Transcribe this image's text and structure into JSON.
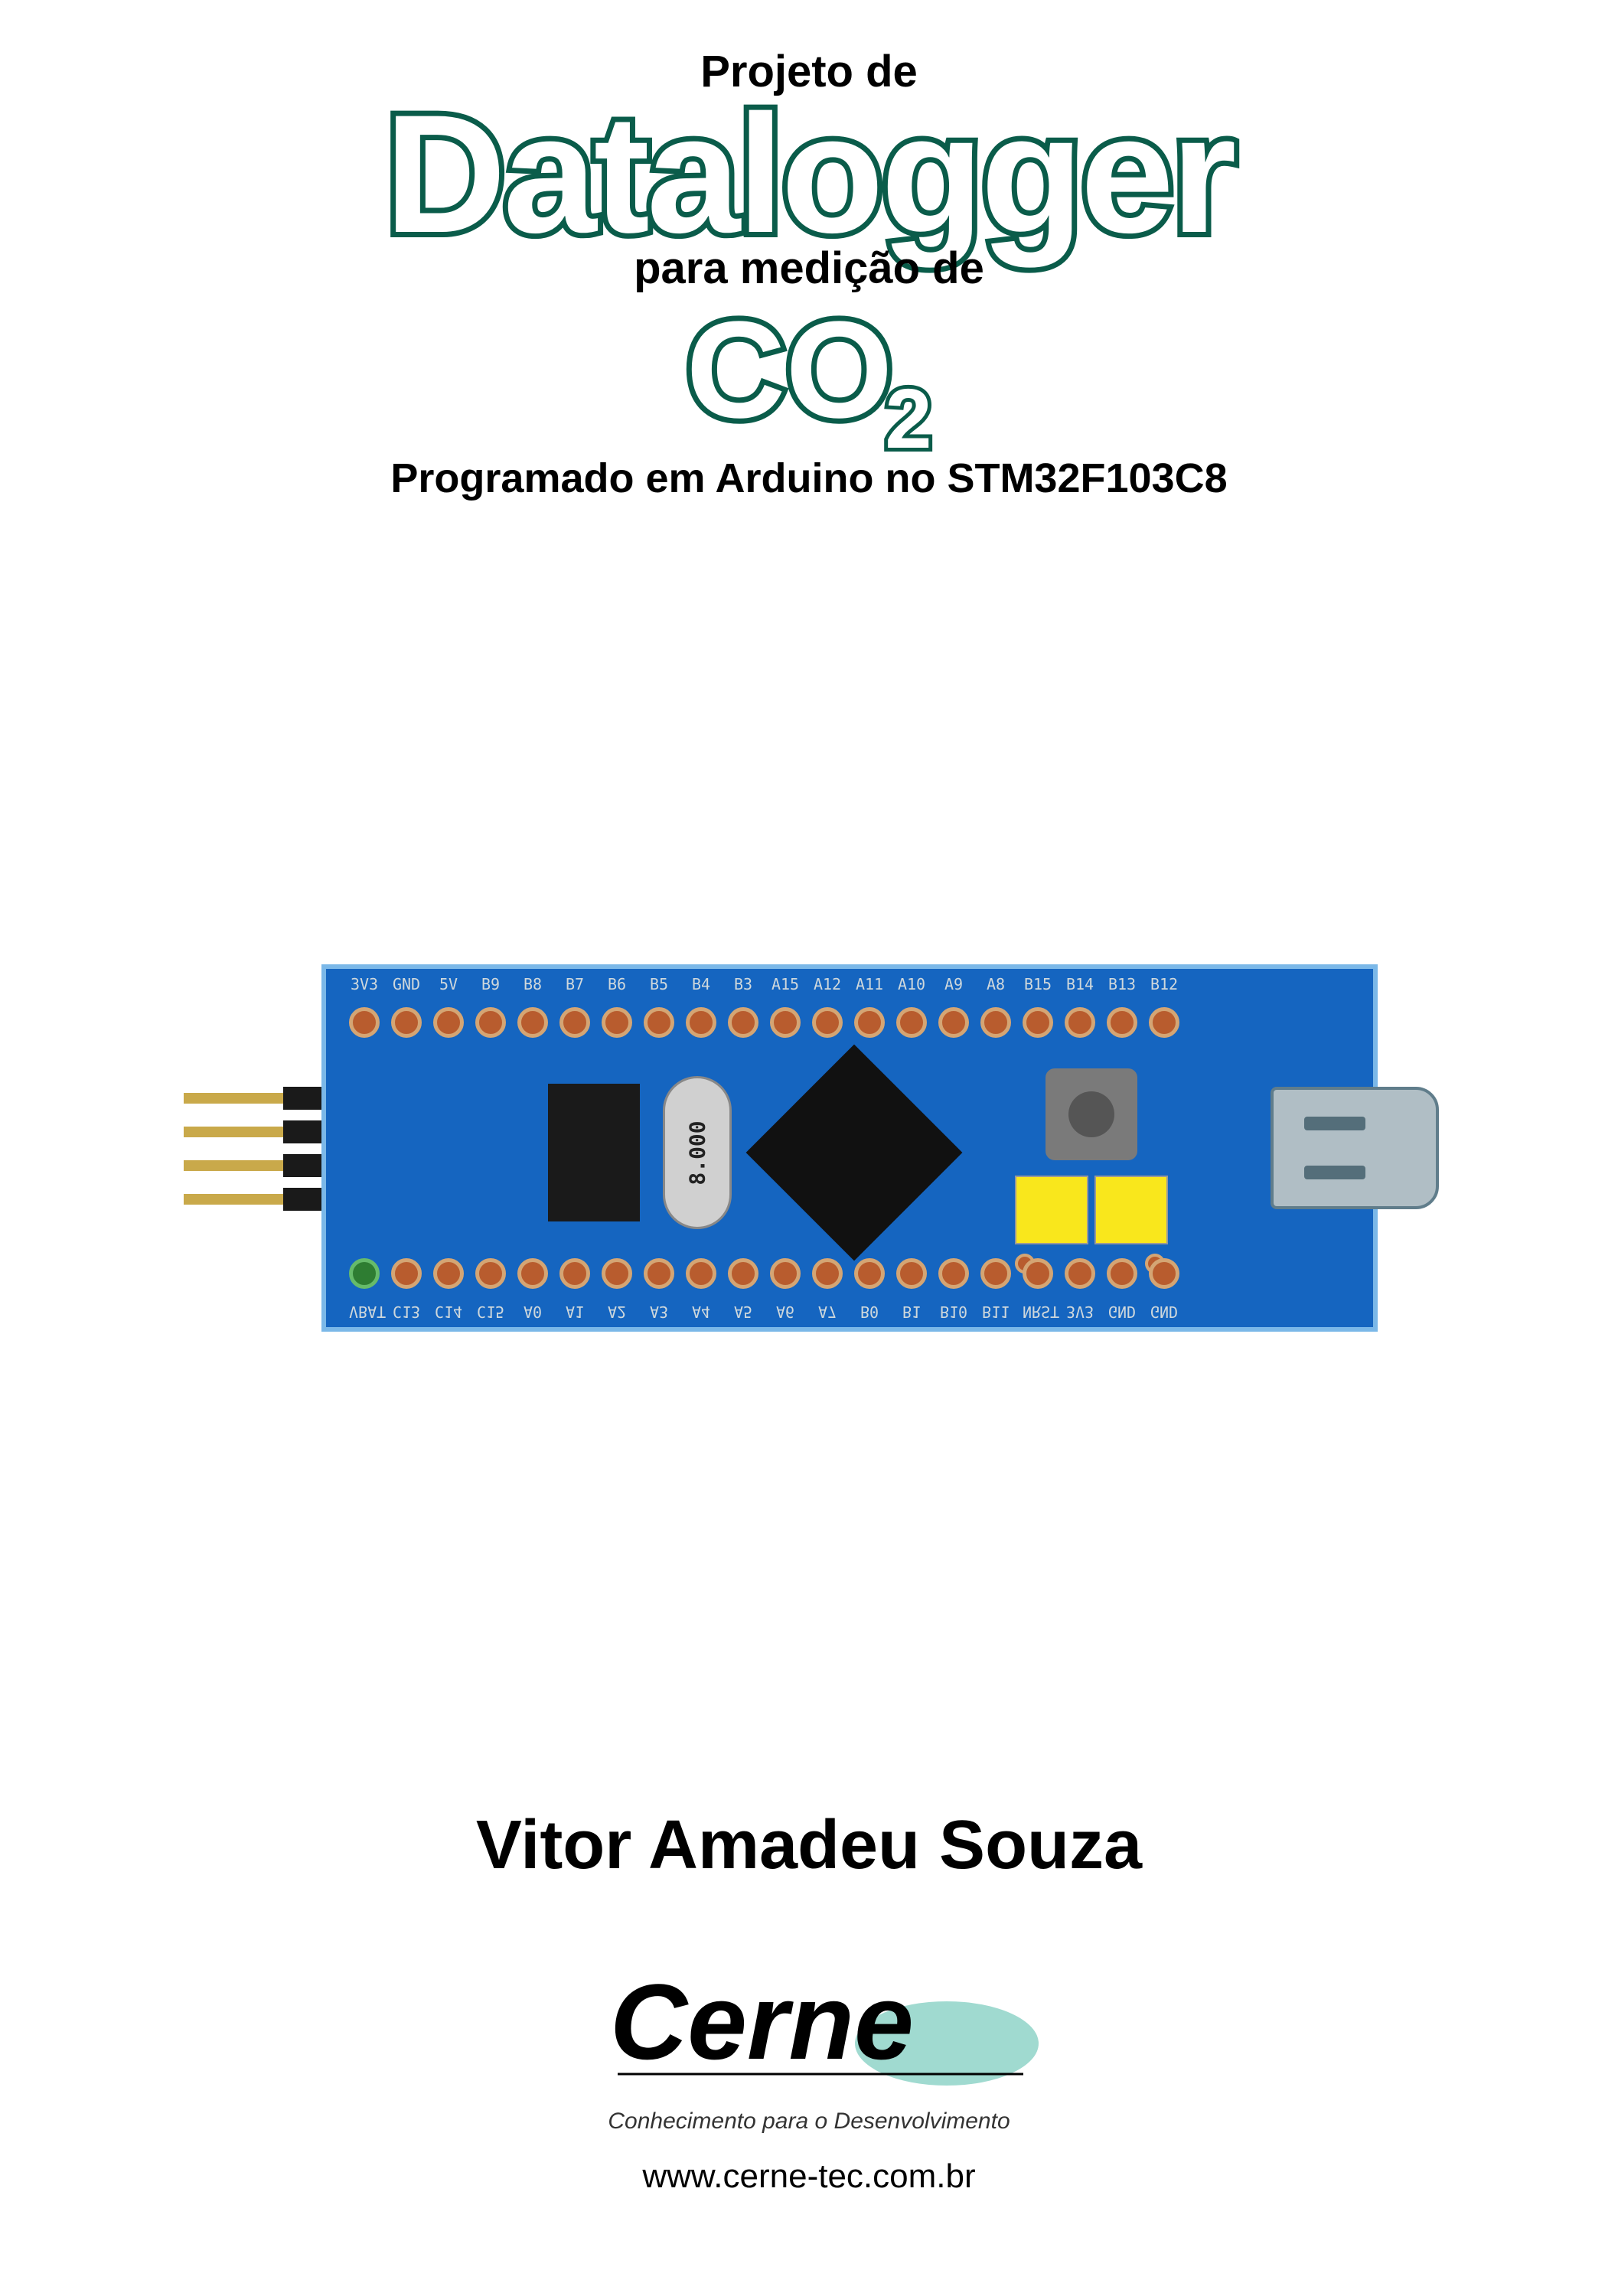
{
  "title": {
    "line1": "Projeto de",
    "big": "Datalogger",
    "line3": "para medição de",
    "co2_main": "CO",
    "co2_sub": "2",
    "line5": "Programado em Arduino no STM32F103C8",
    "outline_color": "#0a5c4a",
    "fill_color": "#ffffff",
    "text_color": "#000000"
  },
  "board": {
    "pcb_color": "#1565c0",
    "pcb_border": "#7bb8e8",
    "pad_fill": "#b85c2e",
    "pad_ring": "#d4a574",
    "pad_green_fill": "#2e7d32",
    "pad_green_ring": "#66bb6a",
    "pin_gold": "#c9a94a",
    "pin_black": "#1a1a1a",
    "crystal_text": "8.000",
    "tact_color": "#7a7a7a",
    "jumper_color": "#f9e71c",
    "usb_color": "#b0bec5",
    "silk_color": "#cfd8dc",
    "top_labels": [
      "3V3",
      "GND",
      "5V",
      "B9",
      "B8",
      "B7",
      "B6",
      "B5",
      "B4",
      "B3",
      "A15",
      "A12",
      "A11",
      "A10",
      "A9",
      "A8",
      "B15",
      "B14",
      "B13",
      "B12"
    ],
    "bottom_labels": [
      "VBAT",
      "C13",
      "C14",
      "C15",
      "A0",
      "A1",
      "A2",
      "A3",
      "A4",
      "A5",
      "A6",
      "A7",
      "B0",
      "B1",
      "B10",
      "B11",
      "NRST",
      "3V3",
      "GND",
      "GND"
    ],
    "pad_count": 20
  },
  "author": "Vitor Amadeu Souza",
  "logo": {
    "name": "Cerne",
    "tagline": "Conhecimento para o Desenvolvimento",
    "url": "www.cerne-tec.com.br",
    "accent_color": "#4db6ac",
    "text_color": "#000000"
  }
}
